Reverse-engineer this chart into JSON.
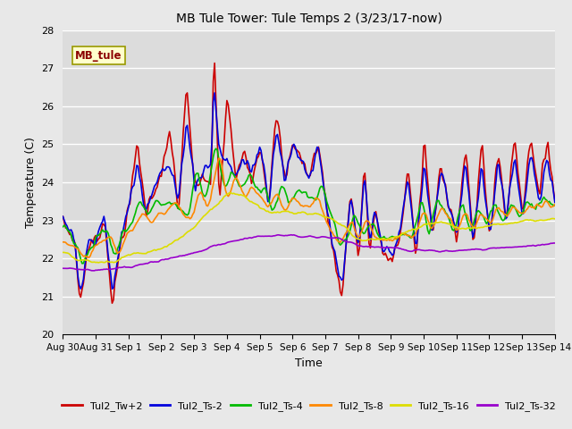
{
  "title": "MB Tule Tower: Tule Temps 2 (3/23/17-now)",
  "xlabel": "Time",
  "ylabel": "Temperature (C)",
  "ylim": [
    20.0,
    28.0
  ],
  "yticks": [
    20.0,
    21.0,
    22.0,
    23.0,
    24.0,
    25.0,
    26.0,
    27.0,
    28.0
  ],
  "background_color": "#e8e8e8",
  "plot_bg_color": "#dcdcdc",
  "grid_color": "#ffffff",
  "series": {
    "Tul2_Tw+2": {
      "color": "#cc0000",
      "lw": 1.2
    },
    "Tul2_Ts-2": {
      "color": "#0000dd",
      "lw": 1.2
    },
    "Tul2_Ts-4": {
      "color": "#00bb00",
      "lw": 1.2
    },
    "Tul2_Ts-8": {
      "color": "#ff8800",
      "lw": 1.2
    },
    "Tul2_Ts-16": {
      "color": "#dddd00",
      "lw": 1.2
    },
    "Tul2_Ts-32": {
      "color": "#9900cc",
      "lw": 1.2
    }
  },
  "legend_label": "MB_tule",
  "x_tick_labels": [
    "Aug 30",
    "Aug 31",
    "Sep 1",
    "Sep 2",
    "Sep 3",
    "Sep 4",
    "Sep 5",
    "Sep 6",
    "Sep 7",
    "Sep 8",
    "Sep 9",
    "Sep 10",
    "Sep 11",
    "Sep 12",
    "Sep 13",
    "Sep 14"
  ],
  "x_tick_positions": [
    0,
    24,
    48,
    72,
    96,
    120,
    144,
    168,
    192,
    216,
    240,
    264,
    288,
    312,
    336,
    360
  ],
  "x_end": 360
}
